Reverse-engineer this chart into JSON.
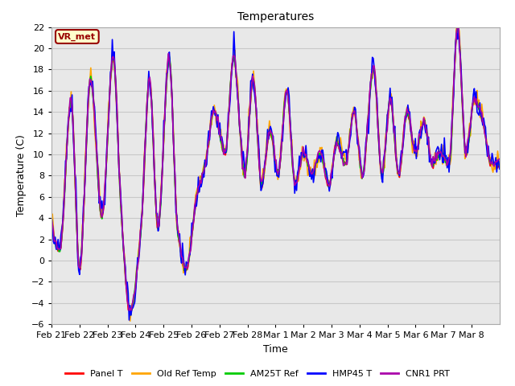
{
  "title": "Temperatures",
  "xlabel": "Time",
  "ylabel": "Temperature (C)",
  "ylim": [
    -6,
    22
  ],
  "yticks": [
    -6,
    -4,
    -2,
    0,
    2,
    4,
    6,
    8,
    10,
    12,
    14,
    16,
    18,
    20,
    22
  ],
  "x_labels": [
    "Feb 21",
    "Feb 22",
    "Feb 23",
    "Feb 24",
    "Feb 25",
    "Feb 26",
    "Feb 27",
    "Feb 28",
    "Mar 1",
    "Mar 2",
    "Mar 3",
    "Mar 4",
    "Mar 5",
    "Mar 6",
    "Mar 7",
    "Mar 8"
  ],
  "legend_labels": [
    "Panel T",
    "Old Ref Temp",
    "AM25T Ref",
    "HMP45 T",
    "CNR1 PRT"
  ],
  "legend_colors": [
    "#ff0000",
    "#ffa500",
    "#00cc00",
    "#0000ff",
    "#aa00aa"
  ],
  "annotation_text": "VR_met",
  "annotation_color": "#990000",
  "annotation_bg": "#ffffcc",
  "plot_bg_color": "#e8e8e8",
  "grid_color": "#d0d0d0",
  "title_fontsize": 10,
  "axis_fontsize": 9,
  "tick_fontsize": 8,
  "n_days": 16,
  "n_points": 480,
  "key_points_x": [
    0,
    0.3,
    0.7,
    1.0,
    1.4,
    1.8,
    2.2,
    2.5,
    2.8,
    3.2,
    3.5,
    3.8,
    4.2,
    4.5,
    4.8,
    5.2,
    5.5,
    5.8,
    6.2,
    6.5,
    6.9,
    7.2,
    7.5,
    7.8,
    8.1,
    8.4,
    8.7,
    9.0,
    9.3,
    9.6,
    9.9,
    10.2,
    10.5,
    10.8,
    11.1,
    11.5,
    11.8,
    12.1,
    12.4,
    12.7,
    13.0,
    13.3,
    13.6,
    13.9,
    14.2,
    14.5,
    14.8,
    15.1,
    15.4,
    15.7,
    16.0
  ],
  "key_points_y": [
    4,
    1,
    15,
    -1,
    17,
    4,
    19,
    4,
    -5,
    3,
    17,
    3,
    19,
    3,
    -1,
    6,
    9,
    14,
    10,
    19,
    8,
    17,
    7,
    12,
    8,
    16,
    7,
    10,
    8,
    10,
    7,
    11,
    9,
    14,
    8,
    18,
    8,
    15,
    8,
    14,
    10,
    13,
    9,
    10,
    9,
    22,
    10,
    15,
    13,
    9,
    9
  ]
}
